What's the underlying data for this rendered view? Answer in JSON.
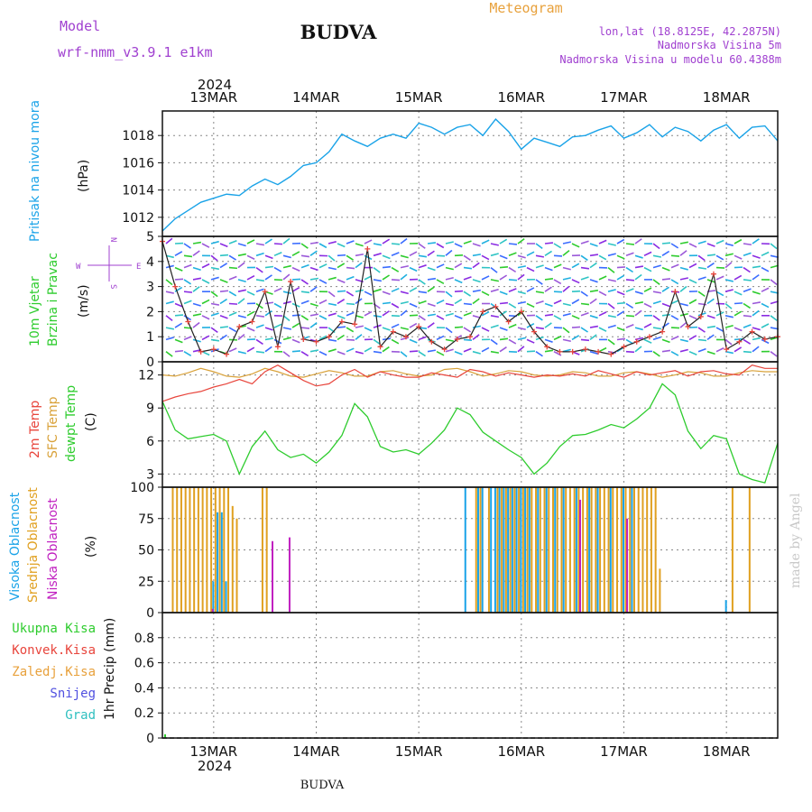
{
  "header": {
    "model_label": "Model",
    "model_name": "wrf-nmm_v3.9.1 e1km",
    "station": "BUDVA",
    "meteogram": "Meteogram",
    "lonlat": "lon,lat (18.8125E, 42.2875N)",
    "altitude": "Nadmorska Visina 5m",
    "model_altitude": "Nadmorska Visina u modelu 60.4388m",
    "footer_station": "BUDVA",
    "credit": "made by Angel"
  },
  "colors": {
    "pressure": "#1aa3e8",
    "temp2m": "#e8453c",
    "sfc_temp": "#d9a23a",
    "dewpoint": "#2ecc2e",
    "wind_speed": "#222222",
    "wind_marker": "#e8453c",
    "high_cloud": "#1aa3e8",
    "mid_cloud": "#e0a020",
    "low_cloud": "#c020c0",
    "label_purple": "#a040d0",
    "label_orange": "#e8a13c"
  },
  "chart_data": {
    "type": "line",
    "x_start": "2024-03-12T12:00",
    "x_end": "2024-03-18T12:00",
    "x_unit": "hours",
    "x_ticks": [
      "13MAR",
      "14MAR",
      "15MAR",
      "16MAR",
      "17MAR",
      "18MAR"
    ],
    "x_year": "2024",
    "panels": [
      {
        "id": "pressure",
        "ylabel": "(hPa)",
        "series_labels": [
          "Pritisak na nivou mora"
        ],
        "yticks": [
          1012,
          1014,
          1016,
          1018
        ],
        "ylim": [
          1010.6,
          1019.8
        ],
        "series": [
          {
            "name": "Pritisak na nivou mora",
            "x": [
              0,
              3,
              6,
              9,
              12,
              15,
              18,
              21,
              24,
              27,
              30,
              33,
              36,
              39,
              42,
              45,
              48,
              51,
              54,
              57,
              60,
              63,
              66,
              69,
              72,
              75,
              78,
              81,
              84,
              87,
              90,
              93,
              96,
              99,
              102,
              105,
              108,
              111,
              114,
              117,
              120,
              123,
              126,
              129,
              132,
              135,
              138,
              141,
              144
            ],
            "y": [
              1011.0,
              1011.9,
              1012.5,
              1013.1,
              1013.4,
              1013.7,
              1013.6,
              1014.3,
              1014.8,
              1014.4,
              1015.0,
              1015.8,
              1016.0,
              1016.8,
              1018.1,
              1017.6,
              1017.2,
              1017.8,
              1018.1,
              1017.8,
              1018.9,
              1018.6,
              1018.1,
              1018.6,
              1018.8,
              1018.0,
              1019.2,
              1018.3,
              1017.0,
              1017.8,
              1017.5,
              1017.2,
              1017.9,
              1018.0,
              1018.4,
              1018.7,
              1017.8,
              1018.2,
              1018.8,
              1017.9,
              1018.6,
              1018.3,
              1017.6,
              1018.4,
              1018.8,
              1017.8,
              1018.6,
              1018.7,
              1017.6
            ]
          }
        ]
      },
      {
        "id": "wind",
        "ylabel": "(m/s)",
        "series_labels": [
          "10m Vjetar",
          "Brzina i Pravac"
        ],
        "compass": [
          "N",
          "S",
          "W",
          "E"
        ],
        "yticks": [
          0,
          1,
          2,
          3,
          4,
          5
        ],
        "ylim": [
          0,
          5
        ],
        "series": [
          {
            "name": "Brzina",
            "x": [
              0,
              3,
              6,
              9,
              12,
              15,
              18,
              21,
              24,
              27,
              30,
              33,
              36,
              39,
              42,
              45,
              48,
              51,
              54,
              57,
              60,
              63,
              66,
              69,
              72,
              75,
              78,
              81,
              84,
              87,
              90,
              93,
              96,
              99,
              102,
              105,
              108,
              111,
              114,
              117,
              120,
              123,
              126,
              129,
              132,
              135,
              138,
              141,
              144
            ],
            "y": [
              4.8,
              3.0,
              1.6,
              0.4,
              0.5,
              0.3,
              1.4,
              1.6,
              2.8,
              0.6,
              3.2,
              0.9,
              0.8,
              1.0,
              1.6,
              1.5,
              4.5,
              0.6,
              1.2,
              1.0,
              1.4,
              0.8,
              0.5,
              0.9,
              1.0,
              2.0,
              2.2,
              1.6,
              2.0,
              1.2,
              0.6,
              0.4,
              0.4,
              0.5,
              0.4,
              0.3,
              0.6,
              0.8,
              1.0,
              1.2,
              2.8,
              1.4,
              1.8,
              3.5,
              0.5,
              0.8,
              1.2,
              0.9,
              1.0
            ]
          }
        ]
      },
      {
        "id": "temperature",
        "ylabel": "(C)",
        "series_labels": [
          "2m Temp",
          "SFC Temp",
          "dewpt Temp"
        ],
        "yticks": [
          3,
          6,
          9,
          12
        ],
        "ylim": [
          1.8,
          13.2
        ],
        "series": [
          {
            "name": "2m Temp",
            "x": [
              0,
              3,
              6,
              9,
              12,
              15,
              18,
              21,
              24,
              27,
              30,
              33,
              36,
              39,
              42,
              45,
              48,
              51,
              54,
              57,
              60,
              63,
              66,
              69,
              72,
              75,
              78,
              81,
              84,
              87,
              90,
              93,
              96,
              99,
              102,
              105,
              108,
              111,
              114,
              117,
              120,
              123,
              126,
              129,
              132,
              135,
              138,
              141,
              144
            ],
            "y": [
              9.6,
              10.0,
              10.3,
              10.5,
              10.9,
              11.2,
              11.6,
              11.2,
              12.3,
              12.9,
              12.2,
              11.5,
              11.0,
              11.2,
              12.0,
              12.5,
              11.8,
              12.3,
              12.0,
              11.8,
              11.8,
              12.2,
              12.0,
              11.8,
              12.5,
              12.3,
              11.9,
              12.2,
              12.0,
              11.8,
              12.0,
              11.9,
              12.1,
              11.9,
              12.4,
              12.1,
              11.8,
              12.3,
              12.0,
              12.2,
              12.4,
              11.9,
              12.3,
              12.4,
              12.1,
              12.0,
              12.9,
              12.6,
              12.6
            ]
          },
          {
            "name": "SFC Temp",
            "x": [
              0,
              3,
              6,
              9,
              12,
              15,
              18,
              21,
              24,
              27,
              30,
              33,
              36,
              39,
              42,
              45,
              48,
              51,
              54,
              57,
              60,
              63,
              66,
              69,
              72,
              75,
              78,
              81,
              84,
              87,
              90,
              93,
              96,
              99,
              102,
              105,
              108,
              111,
              114,
              117,
              120,
              123,
              126,
              129,
              132,
              135,
              138,
              141,
              144
            ],
            "y": [
              12.0,
              11.9,
              12.2,
              12.6,
              12.3,
              11.9,
              11.8,
              12.1,
              12.6,
              12.3,
              11.9,
              11.8,
              12.1,
              12.4,
              12.2,
              11.9,
              11.9,
              12.3,
              12.4,
              12.1,
              11.9,
              12.0,
              12.5,
              12.6,
              12.3,
              11.9,
              12.1,
              12.4,
              12.3,
              12.0,
              11.9,
              12.0,
              12.3,
              12.2,
              11.9,
              11.9,
              12.2,
              12.3,
              12.1,
              11.8,
              12.0,
              12.3,
              12.2,
              11.9,
              11.9,
              12.2,
              12.4,
              12.3,
              12.3
            ]
          },
          {
            "name": "dewpt Temp",
            "x": [
              0,
              3,
              6,
              9,
              12,
              15,
              18,
              21,
              24,
              27,
              30,
              33,
              36,
              39,
              42,
              45,
              48,
              51,
              54,
              57,
              60,
              63,
              66,
              69,
              72,
              75,
              78,
              81,
              84,
              87,
              90,
              93,
              96,
              99,
              102,
              105,
              108,
              111,
              114,
              117,
              120,
              123,
              126,
              129,
              132,
              135,
              138,
              141,
              144
            ],
            "y": [
              9.6,
              7.0,
              6.2,
              6.4,
              6.6,
              6.0,
              3.0,
              5.5,
              6.9,
              5.2,
              4.5,
              4.8,
              4.0,
              5.0,
              6.5,
              9.4,
              8.2,
              5.5,
              5.0,
              5.2,
              4.8,
              5.8,
              7.0,
              9.0,
              8.4,
              6.8,
              6.0,
              5.2,
              4.5,
              3.0,
              4.0,
              5.5,
              6.5,
              6.6,
              7.0,
              7.5,
              7.2,
              8.0,
              9.0,
              11.2,
              10.2,
              6.9,
              5.3,
              6.5,
              6.2,
              3.0,
              2.5,
              2.2,
              5.8
            ]
          }
        ]
      },
      {
        "id": "clouds",
        "ylabel": "(%)",
        "series_labels": [
          "Visoka Oblacnost",
          "Srednja Oblacnost",
          "Niska Oblacnost"
        ],
        "yticks": [
          0,
          25,
          50,
          75,
          100
        ],
        "ylim": [
          0,
          100
        ],
        "type": "bar",
        "series": [
          {
            "name": "Visoka Oblacnost",
            "x": [
              12,
              13,
              14,
              15,
              71,
              74,
              75,
              77,
              78,
              79,
              80,
              81,
              82,
              83,
              84,
              85,
              86,
              88,
              90,
              92,
              94,
              97,
              100,
              102,
              105,
              108,
              110,
              132
            ],
            "y": [
              25,
              80,
              80,
              25,
              100,
              100,
              100,
              100,
              100,
              100,
              100,
              100,
              100,
              100,
              100,
              100,
              100,
              100,
              100,
              100,
              100,
              100,
              100,
              100,
              100,
              100,
              100,
              10
            ]
          },
          {
            "name": "Srednja Oblacnost",
            "x": [
              2,
              3,
              4,
              5,
              6,
              7,
              8,
              9,
              10,
              11,
              12,
              13,
              14,
              15,
              16,
              17,
              23,
              24,
              73,
              74,
              76,
              78,
              79,
              80,
              81,
              82,
              83,
              84,
              85,
              86,
              87,
              88,
              89,
              90,
              91,
              92,
              93,
              94,
              95,
              96,
              97,
              98,
              99,
              100,
              101,
              102,
              103,
              104,
              105,
              106,
              107,
              108,
              109,
              110,
              111,
              112,
              113,
              114,
              115,
              116,
              133,
              137
            ],
            "y": [
              100,
              100,
              100,
              100,
              100,
              100,
              100,
              100,
              100,
              100,
              100,
              100,
              100,
              100,
              85,
              75,
              100,
              100,
              100,
              100,
              100,
              100,
              100,
              100,
              100,
              100,
              100,
              100,
              100,
              100,
              100,
              100,
              100,
              100,
              100,
              100,
              100,
              100,
              100,
              100,
              100,
              100,
              100,
              100,
              100,
              100,
              100,
              100,
              100,
              100,
              100,
              100,
              100,
              100,
              100,
              100,
              100,
              100,
              100,
              35,
              100,
              100
            ]
          },
          {
            "name": "Niska Oblacnost",
            "x": [
              11,
              25,
              29,
              97,
              108
            ],
            "y": [
              3,
              57,
              60,
              90,
              75
            ]
          }
        ]
      },
      {
        "id": "precip",
        "ylabel": "1hr Precip (mm)",
        "series_labels": [
          "Ukupna Kisa",
          "Konvek.Kisa",
          "Zaledj.Kisa",
          "Snijeg",
          "Grad"
        ],
        "yticks": [
          0,
          0.2,
          0.4,
          0.6,
          0.8
        ],
        "ylim": [
          0,
          1.0
        ],
        "type": "bar",
        "series": [
          {
            "name": "Ukupna Kisa",
            "x": [
              0
            ],
            "y": [
              0.03
            ]
          }
        ]
      }
    ]
  }
}
